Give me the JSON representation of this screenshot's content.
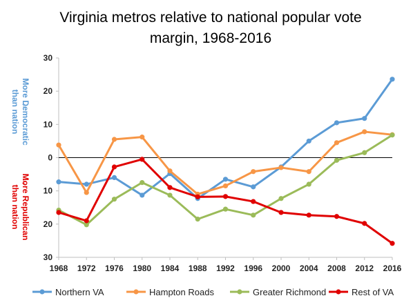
{
  "chart_data": {
    "type": "line",
    "title_line1": "Virginia metros relative to national popular vote",
    "title_line2": "margin, 1968-2016",
    "x": [
      1968,
      1972,
      1976,
      1980,
      1984,
      1988,
      1992,
      1996,
      2000,
      2004,
      2008,
      2012,
      2016
    ],
    "y_tick_labels": [
      "30",
      "20",
      "10",
      "0",
      "10",
      "20",
      "30"
    ],
    "ylim": [
      -30,
      30
    ],
    "grid": false,
    "zero_line": true,
    "legend_position": "bottom",
    "annotations": {
      "dem_line1": "More Democratic",
      "dem_line2": "than nation",
      "dem_arrow": "↑",
      "rep_line1": "More Republican",
      "rep_line2": "than nation",
      "rep_arrow": "↓"
    },
    "series": [
      {
        "name": "Northern VA",
        "color": "#5b9bd5",
        "values": [
          -7.3,
          -8.0,
          -6.0,
          -11.3,
          -4.8,
          -12.3,
          -6.5,
          -8.8,
          -2.8,
          5.0,
          10.5,
          11.8,
          23.6
        ]
      },
      {
        "name": "Hampton Roads",
        "color": "#f79646",
        "values": [
          3.8,
          -10.5,
          5.5,
          6.2,
          -4.0,
          -11.0,
          -8.5,
          -4.2,
          -3.0,
          -4.2,
          4.5,
          7.8,
          6.9
        ]
      },
      {
        "name": "Greater Richmond",
        "color": "#9bbb59",
        "values": [
          -15.8,
          -20.2,
          -12.5,
          -7.5,
          -11.3,
          -18.5,
          -15.5,
          -17.3,
          -12.3,
          -8.0,
          -0.8,
          1.5,
          6.8
        ]
      },
      {
        "name": "Rest of VA",
        "color": "#e00000",
        "values": [
          -16.5,
          -19.0,
          -2.8,
          -0.5,
          -9.0,
          -11.8,
          -11.7,
          -13.2,
          -16.5,
          -17.3,
          -17.7,
          -19.8,
          -25.8
        ]
      }
    ]
  }
}
